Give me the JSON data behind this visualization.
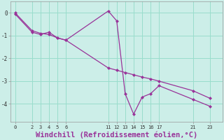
{
  "background_color": "#cceee8",
  "grid_color": "#99ddcc",
  "line_color": "#993399",
  "marker_color": "#993399",
  "xlabel": "Windchill (Refroidissement éolien,°C)",
  "xlabel_fontsize": 7.5,
  "xticks": [
    0,
    2,
    3,
    4,
    5,
    6,
    11,
    12,
    13,
    14,
    15,
    16,
    17,
    21,
    23
  ],
  "yticks": [
    0,
    -1,
    -2,
    -3,
    -4
  ],
  "xlim": [
    -0.5,
    24.5
  ],
  "ylim": [
    -4.8,
    0.5
  ],
  "line1_x": [
    0,
    2,
    3,
    4,
    5,
    6,
    11,
    12,
    13,
    14,
    15,
    16,
    17,
    21,
    23
  ],
  "line1_y": [
    -0.05,
    -0.85,
    -0.95,
    -0.85,
    -1.1,
    -1.2,
    0.08,
    -0.35,
    -3.55,
    -4.45,
    -3.7,
    -3.55,
    -3.2,
    -3.8,
    -4.1
  ],
  "line2_x": [
    0,
    2,
    3,
    4,
    5,
    6,
    11,
    12,
    13,
    14,
    15,
    16,
    17,
    21,
    23
  ],
  "line2_y": [
    0.0,
    -0.78,
    -0.9,
    -0.95,
    -1.1,
    -1.2,
    -2.42,
    -2.52,
    -2.62,
    -2.72,
    -2.82,
    -2.9,
    -3.0,
    -3.42,
    -3.75
  ]
}
